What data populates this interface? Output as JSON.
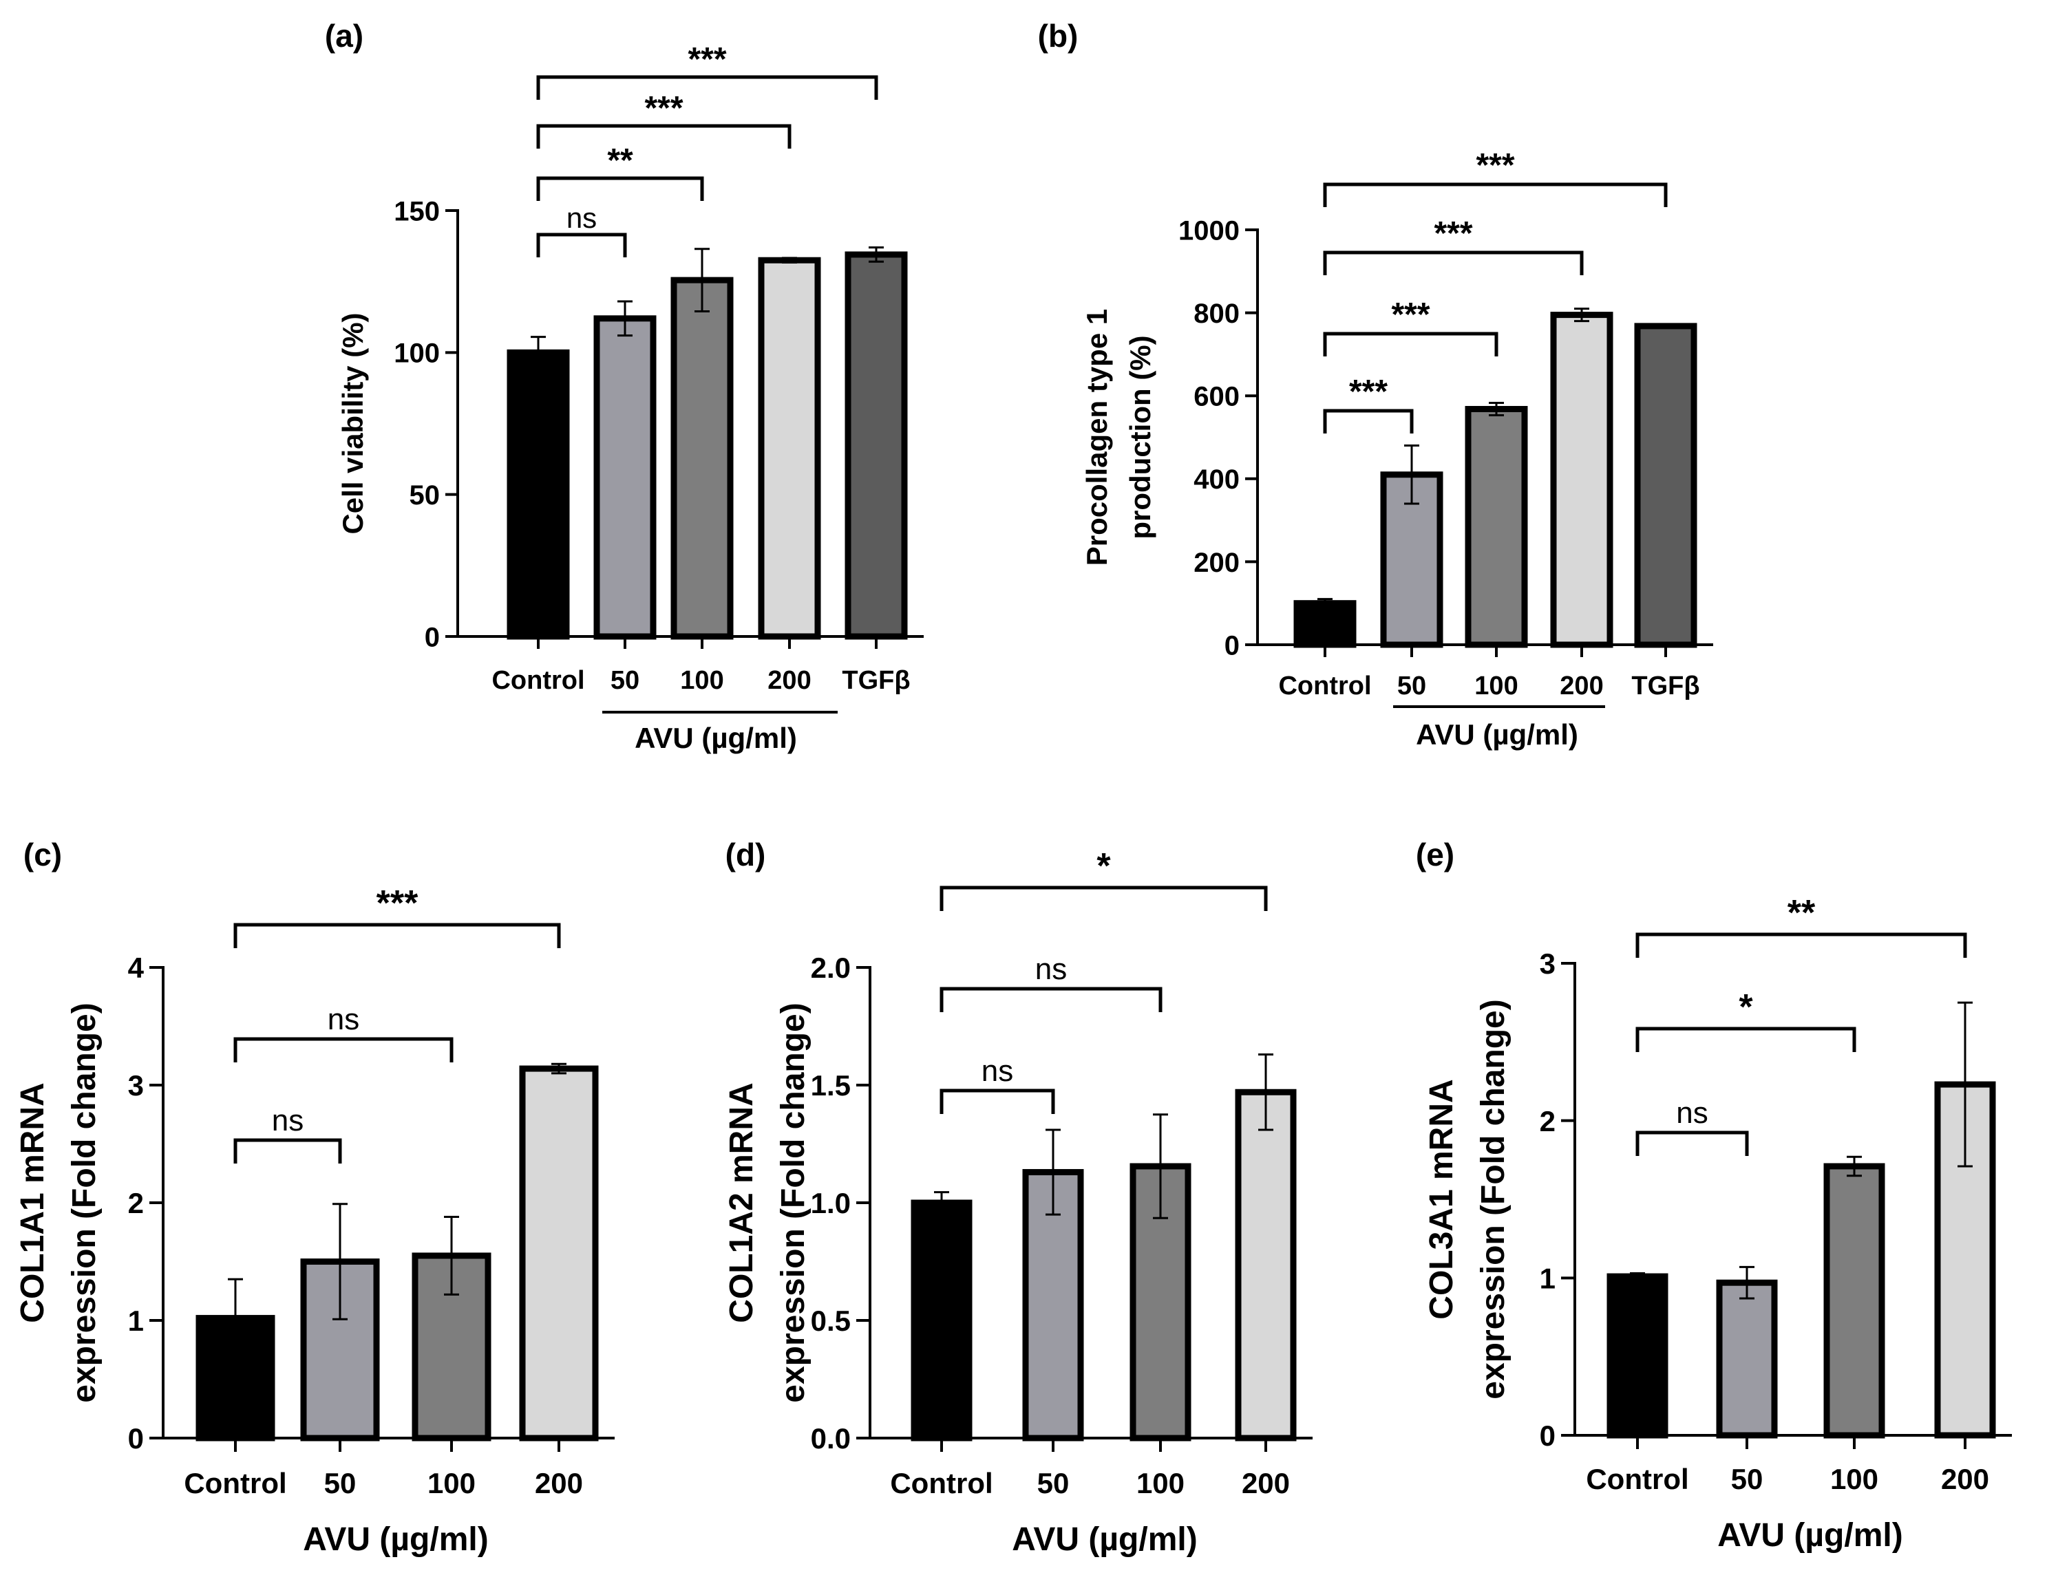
{
  "chart_data": [
    {
      "panel": "(a)",
      "type": "bar",
      "categories": [
        "Control",
        "50",
        "100",
        "200",
        "TGFβ"
      ],
      "values": [
        100,
        112,
        125.5,
        132.5,
        134.5
      ],
      "errors": [
        5.5,
        6,
        11,
        0.8,
        2.5
      ],
      "fills": [
        "#000000",
        "#9b9ba3",
        "#7e7e7e",
        "#d8d8d8",
        "#5c5c5c"
      ],
      "ylabel": "Cell viability (%)",
      "xlabel": "AVU (µg/ml)",
      "ylim": [
        0,
        150
      ],
      "yticks": [
        0,
        50,
        100,
        150
      ],
      "ytick_labels": [
        "0",
        "50",
        "100",
        "150"
      ],
      "underline_group": [
        1,
        3
      ],
      "brackets": [
        {
          "from": 0,
          "to": 1,
          "label": "ns"
        },
        {
          "from": 0,
          "to": 2,
          "label": "**"
        },
        {
          "from": 0,
          "to": 3,
          "label": "***"
        },
        {
          "from": 0,
          "to": 4,
          "label": "***"
        }
      ]
    },
    {
      "panel": "(b)",
      "type": "bar",
      "categories": [
        "Control",
        "50",
        "100",
        "200",
        "TGFβ"
      ],
      "values": [
        100,
        410,
        568,
        795,
        768
      ],
      "errors": [
        10,
        70,
        15,
        15,
        4
      ],
      "fills": [
        "#000000",
        "#9b9ba3",
        "#7e7e7e",
        "#d8d8d8",
        "#5c5c5c"
      ],
      "ylabel": "Procollagen type 1 production (%)",
      "ylabel_lines": [
        "Procollagen type 1",
        "production (%)"
      ],
      "xlabel": "AVU (µg/ml)",
      "ylim": [
        0,
        1000
      ],
      "yticks": [
        0,
        200,
        400,
        600,
        800,
        1000
      ],
      "ytick_labels": [
        "0",
        "200",
        "400",
        "600",
        "800",
        "1000"
      ],
      "underline_group": [
        1,
        3
      ],
      "brackets": [
        {
          "from": 0,
          "to": 1,
          "label": "***"
        },
        {
          "from": 0,
          "to": 2,
          "label": "***"
        },
        {
          "from": 0,
          "to": 3,
          "label": "***"
        },
        {
          "from": 0,
          "to": 4,
          "label": "***"
        }
      ]
    },
    {
      "panel": "(c)",
      "type": "bar",
      "categories": [
        "Control",
        "50",
        "100",
        "200"
      ],
      "values": [
        1.02,
        1.5,
        1.55,
        3.14
      ],
      "errors": [
        0.33,
        0.49,
        0.33,
        0.04
      ],
      "fills": [
        "#000000",
        "#9b9ba3",
        "#7e7e7e",
        "#d8d8d8"
      ],
      "ylabel": "COL1A1 mRNA expression (Fold change)",
      "ylabel_lines": [
        "COL1A1 mRNA",
        "expression (Fold change)"
      ],
      "xlabel": "AVU (µg/ml)",
      "ylim": [
        0,
        4
      ],
      "yticks": [
        0,
        1,
        2,
        3,
        4
      ],
      "ytick_labels": [
        "0",
        "1",
        "2",
        "3",
        "4"
      ],
      "brackets": [
        {
          "from": 0,
          "to": 1,
          "label": "ns"
        },
        {
          "from": 0,
          "to": 2,
          "label": "ns"
        },
        {
          "from": 0,
          "to": 3,
          "label": "***"
        }
      ]
    },
    {
      "panel": "(d)",
      "type": "bar",
      "categories": [
        "Control",
        "50",
        "100",
        "200"
      ],
      "values": [
        1.0,
        1.13,
        1.155,
        1.47
      ],
      "errors": [
        0.045,
        0.18,
        0.22,
        0.16
      ],
      "fills": [
        "#000000",
        "#9b9ba3",
        "#7e7e7e",
        "#d8d8d8"
      ],
      "ylabel": "COL1A2 mRNA expression (Fold change)",
      "ylabel_lines": [
        "COL1A2 mRNA",
        "expression (Fold change)"
      ],
      "xlabel": "AVU (µg/ml)",
      "ylim": [
        0,
        2
      ],
      "yticks": [
        0,
        0.5,
        1.0,
        1.5,
        2.0
      ],
      "ytick_labels": [
        "0.0",
        "0.5",
        "1.0",
        "1.5",
        "2.0"
      ],
      "brackets": [
        {
          "from": 0,
          "to": 1,
          "label": "ns"
        },
        {
          "from": 0,
          "to": 2,
          "label": "ns"
        },
        {
          "from": 0,
          "to": 3,
          "label": "*"
        }
      ]
    },
    {
      "panel": "(e)",
      "type": "bar",
      "categories": [
        "Control",
        "50",
        "100",
        "200"
      ],
      "values": [
        1.01,
        0.97,
        1.71,
        2.23
      ],
      "errors": [
        0.02,
        0.1,
        0.06,
        0.52
      ],
      "fills": [
        "#000000",
        "#9b9ba3",
        "#7e7e7e",
        "#d8d8d8"
      ],
      "ylabel": "COL3A1 mRNA expression (Fold change)",
      "ylabel_lines": [
        "COL3A1 mRNA",
        "expression (Fold change)"
      ],
      "xlabel": "AVU (µg/ml)",
      "ylim": [
        0,
        3
      ],
      "yticks": [
        0,
        1,
        2,
        3
      ],
      "ytick_labels": [
        "0",
        "1",
        "2",
        "3"
      ],
      "brackets": [
        {
          "from": 0,
          "to": 1,
          "label": "ns"
        },
        {
          "from": 0,
          "to": 2,
          "label": "*"
        },
        {
          "from": 0,
          "to": 3,
          "label": "**"
        }
      ]
    }
  ]
}
